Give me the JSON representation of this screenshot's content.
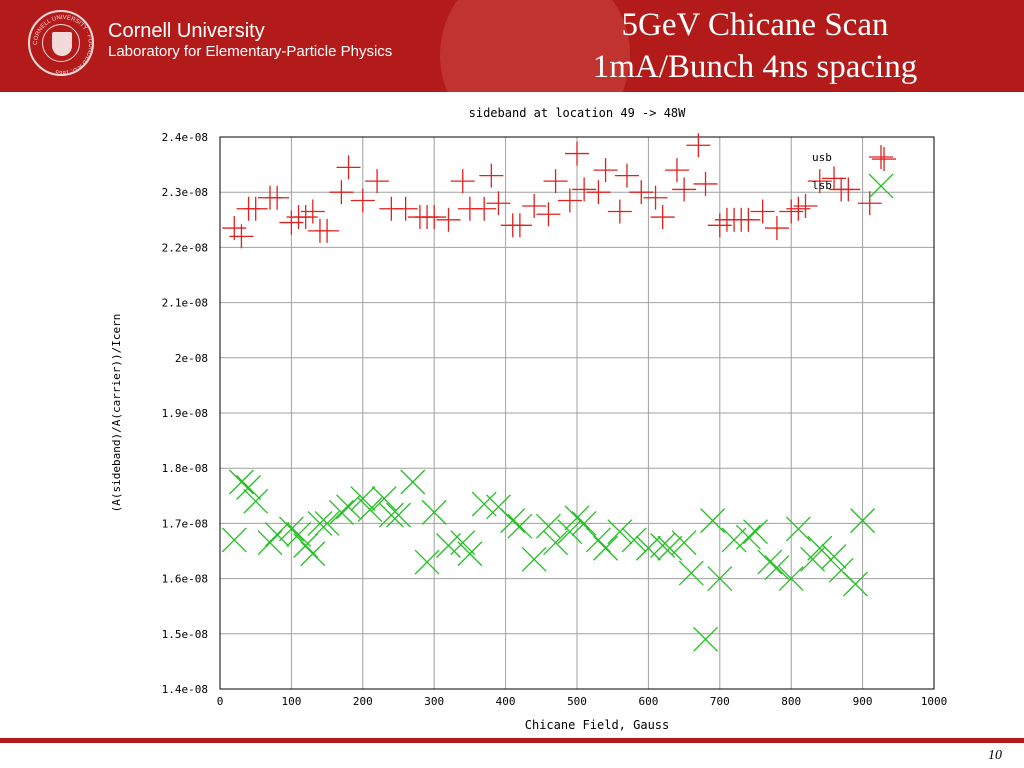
{
  "header": {
    "seal_text": "CORNELL UNIVERSITY · FOUNDED A.D. 1865",
    "university": "Cornell University",
    "lab": "Laboratory for Elementary-Particle Physics"
  },
  "slide": {
    "title_line1": "5GeV Chicane Scan",
    "title_line2": "1mA/Bunch 4ns spacing",
    "page_number": "10"
  },
  "colors": {
    "brand": "#b31b1b",
    "usb": "#e02020",
    "lsb": "#22c022",
    "grid": "#a0a0a0"
  },
  "chart_data": {
    "type": "scatter",
    "title": "sideband at location 49 -> 48W",
    "xlabel": "Chicane Field, Gauss",
    "ylabel": "(A(sideband)/A(carrier))/Icern",
    "xlim": [
      0,
      1000
    ],
    "ylim": [
      1.4e-08,
      2.4e-08
    ],
    "grid": true,
    "legend": "top-right",
    "x_ticks": [
      "0",
      "100",
      "200",
      "300",
      "400",
      "500",
      "600",
      "700",
      "800",
      "900",
      "1000"
    ],
    "y_ticks": [
      "1.4e-08",
      "1.5e-08",
      "1.6e-08",
      "1.7e-08",
      "1.8e-08",
      "1.9e-08",
      "2e-08",
      "2.1e-08",
      "2.2e-08",
      "2.3e-08",
      "2.4e-08"
    ],
    "series": [
      {
        "name": "usb",
        "marker": "plus",
        "x": [
          20,
          30,
          40,
          50,
          70,
          80,
          100,
          110,
          120,
          130,
          140,
          150,
          170,
          180,
          200,
          220,
          240,
          260,
          280,
          290,
          300,
          320,
          340,
          350,
          370,
          380,
          390,
          410,
          420,
          440,
          460,
          470,
          490,
          500,
          510,
          530,
          540,
          560,
          570,
          590,
          610,
          620,
          640,
          650,
          670,
          680,
          700,
          710,
          720,
          730,
          740,
          760,
          780,
          800,
          810,
          820,
          840,
          860,
          870,
          880,
          910,
          930
        ],
        "y": [
          2.235e-08,
          2.22e-08,
          2.27e-08,
          2.27e-08,
          2.29e-08,
          2.29e-08,
          2.245e-08,
          2.255e-08,
          2.255e-08,
          2.265e-08,
          2.23e-08,
          2.23e-08,
          2.3e-08,
          2.345e-08,
          2.285e-08,
          2.32e-08,
          2.27e-08,
          2.27e-08,
          2.255e-08,
          2.255e-08,
          2.255e-08,
          2.25e-08,
          2.32e-08,
          2.27e-08,
          2.27e-08,
          2.33e-08,
          2.28e-08,
          2.24e-08,
          2.24e-08,
          2.275e-08,
          2.26e-08,
          2.32e-08,
          2.285e-08,
          2.37e-08,
          2.305e-08,
          2.3e-08,
          2.34e-08,
          2.265e-08,
          2.33e-08,
          2.3e-08,
          2.29e-08,
          2.255e-08,
          2.34e-08,
          2.305e-08,
          2.385e-08,
          2.315e-08,
          2.24e-08,
          2.25e-08,
          2.25e-08,
          2.25e-08,
          2.25e-08,
          2.265e-08,
          2.235e-08,
          2.265e-08,
          2.27e-08,
          2.275e-08,
          2.32e-08,
          2.325e-08,
          2.305e-08,
          2.305e-08,
          2.28e-08,
          2.36e-08
        ]
      },
      {
        "name": "lsb",
        "marker": "cross",
        "x": [
          20,
          30,
          40,
          50,
          70,
          80,
          100,
          110,
          120,
          130,
          140,
          150,
          170,
          180,
          200,
          210,
          230,
          240,
          250,
          270,
          290,
          300,
          320,
          340,
          350,
          370,
          390,
          410,
          420,
          440,
          460,
          470,
          490,
          500,
          510,
          530,
          540,
          560,
          580,
          600,
          620,
          630,
          650,
          660,
          680,
          690,
          700,
          720,
          740,
          750,
          770,
          780,
          800,
          810,
          830,
          840,
          860,
          870,
          890,
          900
        ],
        "y": [
          1.67e-08,
          1.775e-08,
          1.765e-08,
          1.74e-08,
          1.665e-08,
          1.68e-08,
          1.69e-08,
          1.68e-08,
          1.66e-08,
          1.645e-08,
          1.7e-08,
          1.7e-08,
          1.72e-08,
          1.73e-08,
          1.745e-08,
          1.725e-08,
          1.745e-08,
          1.715e-08,
          1.715e-08,
          1.775e-08,
          1.63e-08,
          1.72e-08,
          1.66e-08,
          1.665e-08,
          1.645e-08,
          1.735e-08,
          1.73e-08,
          1.705e-08,
          1.695e-08,
          1.635e-08,
          1.695e-08,
          1.665e-08,
          1.685e-08,
          1.71e-08,
          1.7e-08,
          1.67e-08,
          1.655e-08,
          1.685e-08,
          1.67e-08,
          1.655e-08,
          1.66e-08,
          1.655e-08,
          1.665e-08,
          1.61e-08,
          1.49e-08,
          1.705e-08,
          1.6e-08,
          1.67e-08,
          1.675e-08,
          1.685e-08,
          1.63e-08,
          1.62e-08,
          1.6e-08,
          1.69e-08,
          1.635e-08,
          1.655e-08,
          1.64e-08,
          1.615e-08,
          1.59e-08,
          1.705e-08
        ]
      }
    ]
  }
}
